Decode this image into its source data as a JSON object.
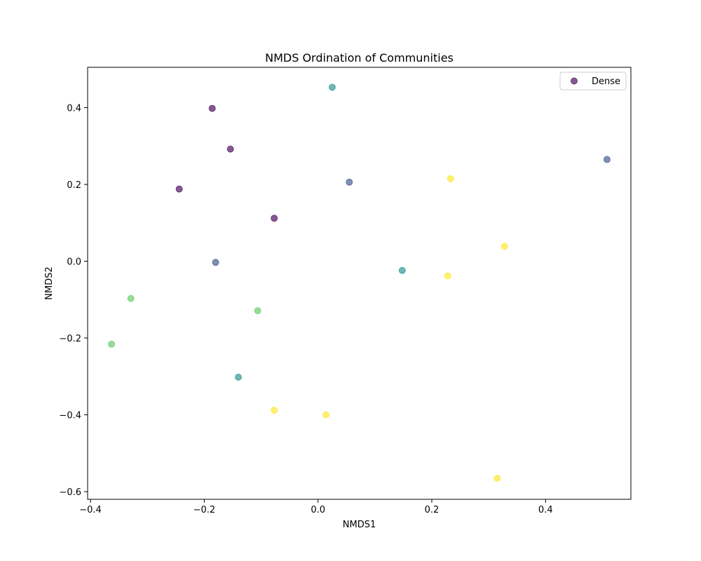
{
  "chart_data": {
    "type": "scatter",
    "title": "NMDS Ordination of Communities",
    "xlabel": "NMDS1",
    "ylabel": "NMDS2",
    "xlim": [
      -0.405,
      0.55
    ],
    "ylim": [
      -0.62,
      0.505
    ],
    "xticks": [
      -0.4,
      -0.2,
      0.0,
      0.2,
      0.4
    ],
    "yticks": [
      -0.6,
      -0.4,
      -0.2,
      0.0,
      0.2,
      0.4
    ],
    "grid": false,
    "legend": {
      "position": "top-right",
      "entries": [
        {
          "label": "Dense",
          "color": "#440154"
        }
      ]
    },
    "marker_alpha": 0.65,
    "points": [
      {
        "x": -0.186,
        "y": 0.398,
        "color": "#440154"
      },
      {
        "x": -0.154,
        "y": 0.292,
        "color": "#440154"
      },
      {
        "x": -0.244,
        "y": 0.188,
        "color": "#440154"
      },
      {
        "x": -0.077,
        "y": 0.112,
        "color": "#440154"
      },
      {
        "x": 0.055,
        "y": 0.206,
        "color": "#3b528b"
      },
      {
        "x": 0.508,
        "y": 0.265,
        "color": "#3b528b"
      },
      {
        "x": -0.18,
        "y": -0.003,
        "color": "#3b528b"
      },
      {
        "x": 0.025,
        "y": 0.453,
        "color": "#21918c"
      },
      {
        "x": 0.148,
        "y": -0.024,
        "color": "#21918c"
      },
      {
        "x": -0.14,
        "y": -0.302,
        "color": "#21918c"
      },
      {
        "x": -0.329,
        "y": -0.097,
        "color": "#5ec962"
      },
      {
        "x": -0.106,
        "y": -0.129,
        "color": "#5ec962"
      },
      {
        "x": -0.363,
        "y": -0.216,
        "color": "#5ec962"
      },
      {
        "x": 0.233,
        "y": 0.215,
        "color": "#fde725"
      },
      {
        "x": 0.328,
        "y": 0.039,
        "color": "#fde725"
      },
      {
        "x": 0.228,
        "y": -0.038,
        "color": "#fde725"
      },
      {
        "x": -0.077,
        "y": -0.388,
        "color": "#fde725"
      },
      {
        "x": 0.014,
        "y": -0.4,
        "color": "#fde725"
      },
      {
        "x": 0.315,
        "y": -0.565,
        "color": "#fde725"
      }
    ]
  }
}
